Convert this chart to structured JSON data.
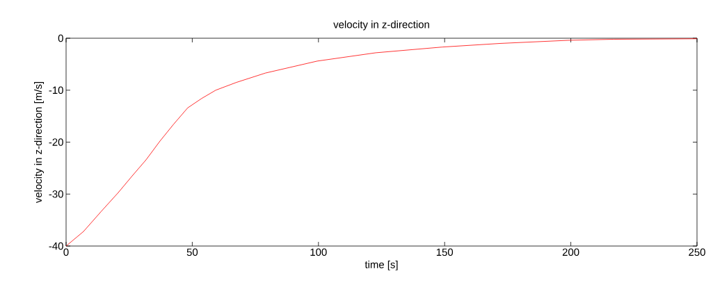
{
  "chart_data": {
    "type": "line",
    "title": "velocity in z-direction",
    "xlabel": "time [s]",
    "ylabel": "velocity in z-direction [m/s]",
    "x": [
      0,
      6.9,
      13.8,
      20.7,
      26.2,
      31.7,
      37.2,
      42.7,
      48.2,
      53.7,
      59.3,
      67.5,
      79,
      99.5,
      122.7,
      149,
      172,
      199,
      217,
      250
    ],
    "series": [
      {
        "color": "#ff0000",
        "values": [
          -40,
          -37.2,
          -33.4,
          -29.7,
          -26.5,
          -23.4,
          -19.8,
          -16.5,
          -13.4,
          -11.6,
          -10.0,
          -8.5,
          -6.7,
          -4.4,
          -2.8,
          -1.7,
          -1.0,
          -0.4,
          -0.2,
          -0.1
        ]
      }
    ],
    "xlim": [
      0,
      250
    ],
    "ylim": [
      -40,
      0
    ],
    "xticks": [
      0,
      50,
      100,
      150,
      200,
      250
    ],
    "yticks": [
      -40,
      -30,
      -20,
      -10,
      0
    ],
    "grid": false,
    "marker": "none",
    "line_style": "solid"
  }
}
